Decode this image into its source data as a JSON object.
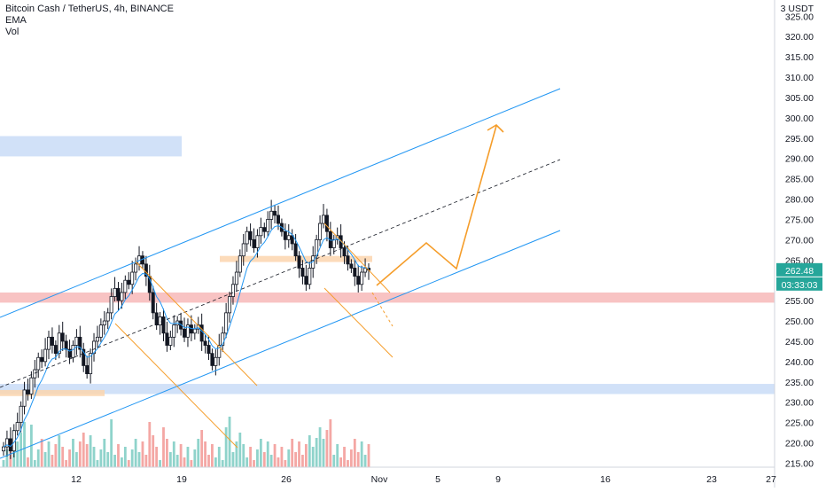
{
  "legend": {
    "title": "Bitcoin Cash / TetherUS, 4h, BINANCE",
    "ema_label": "EMA",
    "vol_label": "Vol"
  },
  "colors": {
    "up": "#26a69a",
    "down": "#ef5350",
    "candle_body": "#131722",
    "vol_up": "#8fd3cb",
    "vol_down": "#f4a7a4",
    "channel": "#2196f3",
    "ema": "#2196f3",
    "orange": "#f59d2a",
    "zone_blue": "#c9dcf7",
    "zone_red": "#f7b8b8",
    "zone_orange": "#fbd5ae",
    "price_tag": "#26a69a"
  },
  "chart_data": {
    "type": "candlestick",
    "currency_label": "3 USDT",
    "y_ticks": [
      "325.00",
      "320.00",
      "315.00",
      "310.00",
      "305.00",
      "300.00",
      "295.00",
      "290.00",
      "285.00",
      "280.00",
      "275.00",
      "270.00",
      "265.00",
      "260.00",
      "255.00",
      "250.00",
      "245.00",
      "240.00",
      "235.00",
      "230.00",
      "225.00",
      "220.00",
      "215.00"
    ],
    "x_ticks": [
      "12",
      "19",
      "26",
      "Nov",
      "5",
      "9",
      "16",
      "23",
      "27"
    ],
    "ylim": [
      214,
      329
    ],
    "last_price": "262.48",
    "countdown": "03:33:03",
    "zones": [
      {
        "name": "blue-top-zone",
        "from": 290.5,
        "to": 295.5,
        "color": "blue"
      },
      {
        "name": "red-support-zone",
        "from": 254.5,
        "to": 257,
        "color": "red"
      },
      {
        "name": "blue-bottom-zone",
        "from": 232,
        "to": 234.5,
        "color": "blue"
      },
      {
        "name": "orange-mid-zone",
        "from": 264.5,
        "to": 266,
        "color": "orange"
      },
      {
        "name": "orange-low-zone",
        "from": 231.5,
        "to": 233,
        "color": "orange"
      }
    ],
    "closes": [
      219,
      221,
      218,
      223,
      225,
      229,
      233,
      232,
      236,
      238,
      241,
      240,
      243,
      246,
      244,
      242,
      247,
      245,
      243,
      241,
      244,
      246,
      243,
      239,
      237,
      242,
      245,
      246,
      249,
      250,
      252,
      256,
      258,
      255,
      257,
      260,
      259,
      262,
      264,
      266,
      264,
      261,
      257,
      252,
      249,
      251,
      247,
      244,
      246,
      249,
      250,
      248,
      246,
      249,
      247,
      248,
      249,
      245,
      244,
      242,
      239,
      241,
      244,
      247,
      252,
      256,
      259,
      262,
      266,
      269,
      272,
      270,
      268,
      271,
      273,
      272,
      275,
      277,
      276,
      274,
      272,
      270,
      271,
      269,
      266,
      263,
      261,
      259,
      263,
      266,
      270,
      274,
      276,
      272,
      268,
      270,
      271,
      268,
      266,
      264,
      263,
      261,
      259,
      262,
      263,
      262.5
    ]
  }
}
